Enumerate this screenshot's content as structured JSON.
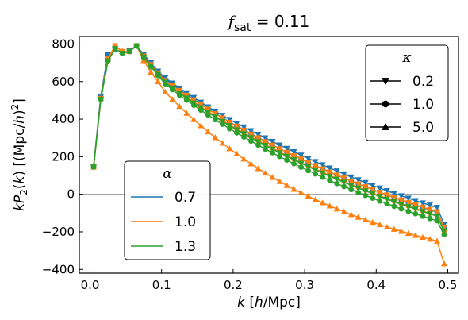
{
  "chart_data": {
    "type": "line",
    "title": "f_sat = 0.11",
    "title_parts": {
      "main": "f",
      "sub": "sat",
      "rest": " = 0.11"
    },
    "xlabel": "k [h/Mpc]",
    "ylabel": "kP_2(k) [(Mpc/h)^2]",
    "xlim": [
      -0.015,
      0.515
    ],
    "ylim": [
      -420,
      840
    ],
    "xticks": [
      0.0,
      0.1,
      0.2,
      0.3,
      0.4,
      0.5
    ],
    "xtick_labels": [
      "0.0",
      "0.1",
      "0.2",
      "0.3",
      "0.4",
      "0.5"
    ],
    "yticks": [
      -400,
      -200,
      0,
      200,
      400,
      600,
      800
    ],
    "ytick_labels": [
      "−400",
      "−200",
      "0",
      "200",
      "400",
      "600",
      "800"
    ],
    "zero_line": true,
    "grid": false,
    "k_start": 0.005,
    "k_step": 0.01,
    "series": [
      {
        "alpha": "0.7",
        "kappa": "0.2",
        "color": "#1f77b4",
        "marker": "triangle-down",
        "y": [
          150,
          520,
          745,
          770,
          755,
          765,
          790,
          745,
          700,
          655,
          620,
          592,
          565,
          540,
          515,
          490,
          465,
          442,
          420,
          398,
          378,
          358,
          338,
          319,
          300,
          281,
          262,
          244,
          226,
          208,
          191,
          174,
          157,
          140,
          124,
          108,
          92,
          77,
          62,
          47,
          33,
          19,
          5,
          -8,
          -21,
          -34,
          -46,
          -58,
          -70,
          -160
        ]
      },
      {
        "alpha": "0.7",
        "kappa": "1.0",
        "color": "#1f77b4",
        "marker": "circle",
        "y": [
          150,
          520,
          745,
          770,
          755,
          765,
          790,
          742,
          696,
          650,
          614,
          585,
          557,
          531,
          506,
          480,
          455,
          431,
          408,
          385,
          364,
          343,
          322,
          302,
          282,
          262,
          243,
          224,
          206,
          188,
          170,
          153,
          136,
          119,
          103,
          87,
          71,
          55,
          40,
          25,
          10,
          -4,
          -18,
          -32,
          -45,
          -58,
          -71,
          -83,
          -95,
          -180
        ]
      },
      {
        "alpha": "1.0",
        "kappa": "0.2",
        "color": "#ff7f0e",
        "marker": "triangle-down",
        "y": [
          145,
          510,
          720,
          790,
          760,
          760,
          790,
          735,
          690,
          645,
          605,
          578,
          552,
          527,
          502,
          478,
          453,
          429,
          406,
          383,
          362,
          341,
          320,
          300,
          280,
          261,
          242,
          223,
          205,
          187,
          169,
          152,
          135,
          118,
          102,
          86,
          70,
          55,
          40,
          25,
          10,
          -4,
          -18,
          -31,
          -44,
          -57,
          -69,
          -81,
          -93,
          -175
        ]
      },
      {
        "alpha": "1.0",
        "kappa": "1.0",
        "color": "#ff7f0e",
        "marker": "circle",
        "y": [
          145,
          510,
          720,
          790,
          760,
          760,
          790,
          732,
          686,
          640,
          598,
          570,
          543,
          517,
          491,
          466,
          441,
          417,
          393,
          370,
          348,
          327,
          306,
          285,
          265,
          245,
          226,
          207,
          188,
          170,
          152,
          135,
          118,
          101,
          85,
          69,
          53,
          37,
          22,
          7,
          -8,
          -22,
          -36,
          -50,
          -63,
          -76,
          -89,
          -101,
          -113,
          -195
        ]
      },
      {
        "alpha": "1.0",
        "kappa": "5.0",
        "color": "#ff7f0e",
        "marker": "triangle-up",
        "y": [
          145,
          510,
          720,
          790,
          760,
          760,
          790,
          712,
          650,
          600,
          545,
          505,
          468,
          432,
          398,
          365,
          333,
          302,
          272,
          243,
          215,
          188,
          162,
          137,
          113,
          90,
          68,
          47,
          27,
          8,
          -10,
          -28,
          -45,
          -62,
          -78,
          -93,
          -108,
          -122,
          -136,
          -149,
          -162,
          -174,
          -186,
          -197,
          -208,
          -219,
          -229,
          -239,
          -249,
          -370
        ]
      },
      {
        "alpha": "1.3",
        "kappa": "0.2",
        "color": "#2ca02c",
        "marker": "triangle-down",
        "y": [
          145,
          505,
          710,
          775,
          750,
          760,
          790,
          730,
          684,
          638,
          596,
          566,
          538,
          512,
          486,
          461,
          436,
          412,
          388,
          365,
          343,
          322,
          301,
          280,
          260,
          240,
          221,
          202,
          183,
          165,
          147,
          130,
          113,
          96,
          80,
          64,
          48,
          33,
          18,
          3,
          -12,
          -26,
          -40,
          -53,
          -66,
          -79,
          -92,
          -104,
          -116,
          -195
        ]
      },
      {
        "alpha": "1.3",
        "kappa": "1.0",
        "color": "#2ca02c",
        "marker": "circle",
        "y": [
          145,
          505,
          710,
          775,
          750,
          760,
          790,
          727,
          679,
          632,
          588,
          557,
          528,
          501,
          474,
          448,
          422,
          397,
          373,
          349,
          327,
          305,
          283,
          262,
          241,
          221,
          201,
          182,
          163,
          144,
          126,
          108,
          91,
          74,
          57,
          41,
          25,
          9,
          -6,
          -21,
          -36,
          -50,
          -64,
          -78,
          -91,
          -104,
          -117,
          -129,
          -141,
          -215
        ]
      }
    ],
    "legend_alpha": {
      "title": "α",
      "location": "lower-left",
      "entries": [
        {
          "label": "0.7",
          "color": "#1f77b4"
        },
        {
          "label": "1.0",
          "color": "#ff7f0e"
        },
        {
          "label": "1.3",
          "color": "#2ca02c"
        }
      ]
    },
    "legend_kappa": {
      "title": "κ",
      "location": "upper-right",
      "entries": [
        {
          "label": "0.2",
          "marker": "triangle-down"
        },
        {
          "label": "1.0",
          "marker": "circle"
        },
        {
          "label": "5.0",
          "marker": "triangle-up"
        }
      ]
    }
  }
}
